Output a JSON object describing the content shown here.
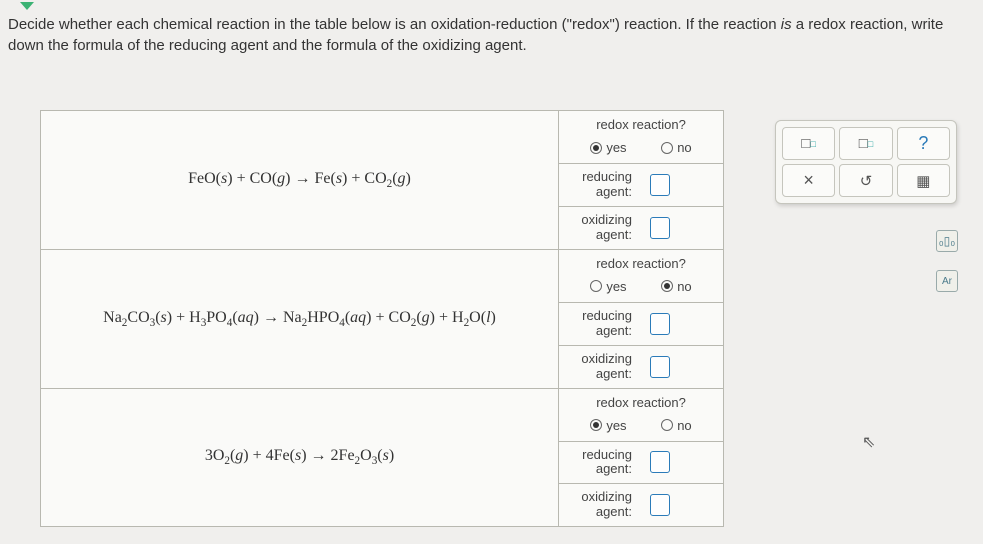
{
  "instructions": {
    "line1": "Decide whether each chemical reaction in the table below is an oxidation-reduction (\"redox\") reaction. If the reaction ",
    "italic1": "is",
    "line2": " a redox reaction, write down the formula of the reducing agent and the formula of the oxidizing agent."
  },
  "headers": {
    "redox_q": "redox reaction?",
    "yes": "yes",
    "no": "no",
    "reducing_label_l1": "reducing",
    "reducing_label_l2": "agent:",
    "oxidizing_label_l1": "oxidizing",
    "oxidizing_label_l2": "agent:"
  },
  "reactions": [
    {
      "equation_html": "FeO(<i>s</i>) + CO(<i>g</i>) → Fe(<i>s</i>) + CO<sub>2</sub>(<i>g</i>)",
      "yes_selected": true,
      "no_selected": false
    },
    {
      "equation_html": "Na<sub>2</sub>CO<sub>3</sub>(<i>s</i>) + H<sub>3</sub>PO<sub>4</sub>(<i>aq</i>) → Na<sub>2</sub>HPO<sub>4</sub>(<i>aq</i>) + CO<sub>2</sub>(<i>g</i>) + H<sub>2</sub>O(<i>l</i>)",
      "yes_selected": false,
      "no_selected": true
    },
    {
      "equation_html": "3O<sub>2</sub>(<i>g</i>) + 4Fe(<i>s</i>) → 2Fe<sub>2</sub>O<sub>3</sub>(<i>s</i>)",
      "yes_selected": true,
      "no_selected": false
    }
  ],
  "toolbar": {
    "superscript_base": "□",
    "subscript_base": "□",
    "help": "?",
    "clear": "×",
    "reset": "↺",
    "table": "▦"
  },
  "side": {
    "bars": "₀▯₀",
    "periodic": "Ar"
  },
  "colors": {
    "background": "#f0efed",
    "border": "#b8b8b0",
    "input_border": "#2b7bb9",
    "chevron": "#3bb273"
  }
}
